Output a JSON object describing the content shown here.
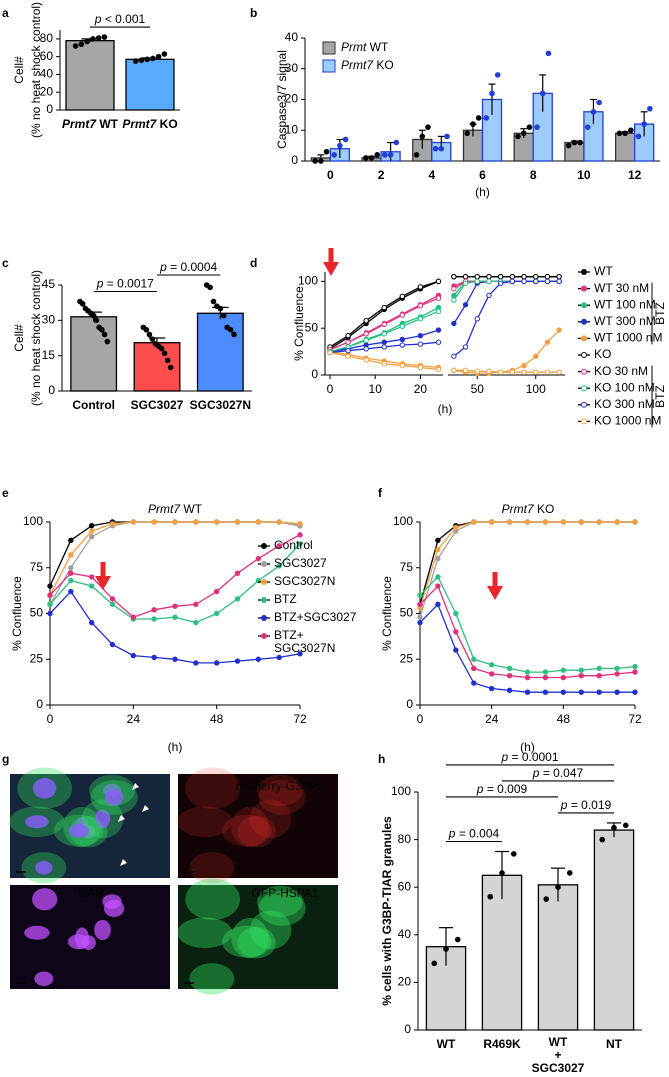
{
  "chart_data": [
    {
      "type": "bar",
      "panel": "a",
      "ylabel": [
        "Cell#",
        "(% no heat shock control)"
      ],
      "ylim": [
        0,
        90
      ],
      "yticks": [
        0,
        20,
        40,
        60,
        80
      ],
      "categories": [
        "Prmt7 WT",
        "Prmt7 KO"
      ],
      "italic_first_word": true,
      "series": [
        {
          "colors": [
            "#a6a6a6",
            "#59a9ff"
          ],
          "values": [
            78,
            57
          ],
          "errors": [
            2,
            1.5
          ],
          "points": [
            [
              72,
              74,
              77,
              80,
              81,
              82
            ],
            [
              55,
              56,
              57,
              58,
              60,
              63
            ]
          ]
        }
      ],
      "annotations": [
        {
          "text": "p < 0.001",
          "between": [
            "Prmt7 WT",
            "Prmt7 KO"
          ]
        }
      ]
    },
    {
      "type": "bar",
      "panel": "b",
      "ylabel": "Caspase3/7 signal",
      "xlabel": "(h)",
      "ylim": [
        0,
        40
      ],
      "yticks": [
        0,
        10,
        20,
        30,
        40
      ],
      "categories": [
        "0",
        "2",
        "4",
        "6",
        "8",
        "10",
        "12"
      ],
      "italic_first_word": true,
      "series": [
        {
          "name": "Prmt WT",
          "color": "#a6a6a6",
          "stroke": "#333333",
          "point_color": "#000000",
          "values": [
            1,
            1,
            7,
            10,
            9,
            6,
            9
          ],
          "errors": [
            1,
            0.5,
            3,
            2,
            1.5,
            0.5,
            0.5
          ],
          "points": [
            [
              0,
              0,
              3
            ],
            [
              1,
              1,
              2
            ],
            [
              2,
              8,
              11
            ],
            [
              9,
              12,
              14
            ],
            [
              8,
              9,
              11
            ],
            [
              5,
              6,
              6
            ],
            [
              9,
              9,
              10
            ]
          ]
        },
        {
          "name": "Prmt7 KO",
          "color": "#9ecbff",
          "stroke": "#1f3fd6",
          "point_color": "#1f3fd6",
          "values": [
            4,
            3,
            6,
            20,
            22,
            16,
            12
          ],
          "errors": [
            3,
            3,
            2,
            5,
            6,
            4,
            4
          ],
          "points": [
            [
              2,
              5,
              7
            ],
            [
              2,
              2,
              6
            ],
            [
              4,
              4,
              8
            ],
            [
              14,
              22,
              28
            ],
            [
              11,
              22,
              35
            ],
            [
              11,
              16,
              19
            ],
            [
              8,
              12,
              17
            ]
          ]
        }
      ]
    },
    {
      "type": "bar",
      "panel": "c",
      "ylabel": [
        "Cell#",
        "(% no heat shock control)"
      ],
      "ylim": [
        0,
        45
      ],
      "yticks": [
        0,
        15,
        30,
        45
      ],
      "categories": [
        "Control",
        "SGC3027",
        "SGC3027N"
      ],
      "series": [
        {
          "colors": [
            "#a6a6a6",
            "#ff4d4d",
            "#4d8cff"
          ],
          "values": [
            31.5,
            20.5,
            33
          ],
          "errors": [
            2,
            2,
            2.5
          ],
          "points": [
            [
              38,
              37,
              35,
              34,
              33,
              32,
              30,
              27,
              26,
              24,
              21
            ],
            [
              27,
              26,
              24,
              22,
              20,
              19,
              18,
              16,
              13,
              10
            ],
            [
              45,
              44,
              38,
              36,
              35,
              32,
              27,
              26,
              24
            ]
          ]
        }
      ],
      "annotations": [
        {
          "text": "p = 0.0017",
          "between": [
            "Control",
            "SGC3027"
          ]
        },
        {
          "text": "p = 0.0004",
          "between": [
            "SGC3027",
            "SGC3027N"
          ]
        }
      ]
    },
    {
      "type": "line",
      "panel": "d",
      "ylabel": "% Confluence",
      "xlabel": "(h)",
      "ylim": [
        0,
        110
      ],
      "yticks": [
        0,
        50,
        100
      ],
      "x_segments": [
        {
          "xlim": [
            0,
            25
          ],
          "xticks": [
            0,
            10,
            20
          ]
        },
        {
          "xlim": [
            25,
            125
          ],
          "xticks": [
            50,
            100
          ]
        }
      ],
      "x": [
        0,
        4,
        8,
        12,
        16,
        20,
        24,
        30,
        40,
        50,
        60,
        70,
        80,
        90,
        100,
        110,
        120
      ],
      "series": [
        {
          "name": "WT",
          "color": "#000000",
          "marker": "filled",
          "values": [
            28,
            40,
            55,
            70,
            82,
            92,
            100,
            105,
            105,
            105,
            105,
            105,
            105,
            105,
            105,
            105,
            105
          ]
        },
        {
          "name": "WT 30 nM",
          "color": "#e0307a",
          "marker": "filled",
          "values": [
            27,
            35,
            45,
            55,
            65,
            75,
            85,
            95,
            100,
            100,
            100,
            100,
            100,
            100,
            100,
            100,
            100
          ]
        },
        {
          "name": "WT 100 nM",
          "color": "#20c080",
          "marker": "filled",
          "values": [
            25,
            30,
            38,
            45,
            55,
            62,
            72,
            85,
            100,
            100,
            100,
            100,
            100,
            100,
            100,
            100,
            100
          ]
        },
        {
          "name": "WT 300 nM",
          "color": "#2030d0",
          "marker": "filled",
          "values": [
            25,
            28,
            32,
            35,
            38,
            42,
            48,
            55,
            75,
            98,
            100,
            100,
            100,
            100,
            100,
            100,
            100
          ]
        },
        {
          "name": "WT 1000 nM",
          "color": "#f5a040",
          "marker": "filled",
          "values": [
            25,
            22,
            18,
            15,
            12,
            10,
            8,
            5,
            3,
            2,
            2,
            3,
            5,
            10,
            20,
            35,
            48
          ]
        },
        {
          "name": "KO",
          "color": "#000000",
          "marker": "open",
          "values": [
            30,
            42,
            58,
            72,
            84,
            94,
            100,
            105,
            105,
            105,
            105,
            105,
            105,
            105,
            105,
            105,
            105
          ]
        },
        {
          "name": "KO 30 nM",
          "color": "#e0307a",
          "marker": "open",
          "values": [
            27,
            35,
            44,
            54,
            64,
            74,
            82,
            92,
            100,
            100,
            100,
            100,
            100,
            100,
            100,
            100,
            100
          ]
        },
        {
          "name": "KO 100 nM",
          "color": "#20c080",
          "marker": "open",
          "values": [
            25,
            30,
            37,
            44,
            52,
            60,
            68,
            80,
            98,
            100,
            100,
            100,
            100,
            100,
            100,
            100,
            100
          ]
        },
        {
          "name": "KO 300 nM",
          "color": "#2030d0",
          "marker": "open",
          "values": [
            24,
            26,
            28,
            30,
            32,
            33,
            35,
            20,
            30,
            60,
            85,
            98,
            100,
            100,
            100,
            100,
            100
          ]
        },
        {
          "name": "KO 1000 nM",
          "color": "#f5a040",
          "marker": "open",
          "values": [
            24,
            20,
            16,
            12,
            10,
            8,
            6,
            5,
            5,
            4,
            4,
            3,
            3,
            3,
            3,
            3,
            3
          ]
        }
      ],
      "legend_groups": [
        {
          "label": "BTZ",
          "from": "WT 30 nM",
          "to": "WT 1000 nM"
        },
        {
          "label": "BTZ",
          "from": "KO 30 nM",
          "to": "KO 1000 nM"
        }
      ]
    },
    {
      "type": "line",
      "panel": "e",
      "title": "Prmt7 WT",
      "italic_first_word": true,
      "ylabel": "% Confluence",
      "xlabel": "(h)",
      "xlim": [
        0,
        72
      ],
      "xticks": [
        0,
        24,
        48,
        72
      ],
      "ylim": [
        0,
        100
      ],
      "yticks": [
        0,
        25,
        50,
        75,
        100
      ],
      "x": [
        0,
        6,
        12,
        18,
        24,
        30,
        36,
        42,
        48,
        54,
        60,
        66,
        72
      ],
      "series": [
        {
          "name": "Control",
          "color": "#000000",
          "marker": "filled",
          "values": [
            65,
            90,
            98,
            100,
            100,
            100,
            100,
            100,
            100,
            100,
            100,
            100,
            98
          ]
        },
        {
          "name": "SGC3027",
          "color": "#a0a0a0",
          "marker": "filled",
          "values": [
            55,
            75,
            92,
            98,
            100,
            100,
            100,
            100,
            100,
            100,
            100,
            100,
            98
          ]
        },
        {
          "name": "SGC3027N",
          "color": "#f5a040",
          "marker": "filled",
          "values": [
            60,
            82,
            95,
            99,
            100,
            100,
            100,
            100,
            100,
            100,
            100,
            100,
            99
          ]
        },
        {
          "name": "BTZ",
          "color": "#2fbf80",
          "marker": "filled",
          "values": [
            55,
            68,
            65,
            55,
            47,
            47,
            48,
            45,
            50,
            58,
            68,
            76,
            88
          ]
        },
        {
          "name": "BTZ+SGC3027",
          "color": "#2030d0",
          "marker": "filled",
          "values": [
            50,
            62,
            45,
            33,
            27,
            26,
            25,
            23,
            23,
            24,
            25,
            26,
            28
          ]
        },
        {
          "name": "BTZ+\nSGC3027N",
          "color": "#e0307a",
          "marker": "filled",
          "values": [
            60,
            72,
            70,
            58,
            48,
            52,
            54,
            55,
            62,
            72,
            80,
            87,
            93
          ]
        }
      ]
    },
    {
      "type": "line",
      "panel": "f",
      "title": "Prmt7 KO",
      "italic_first_word": true,
      "ylabel": "% Confluence",
      "xlabel": "(h)",
      "xlim": [
        0,
        72
      ],
      "xticks": [
        0,
        24,
        48,
        72
      ],
      "ylim": [
        0,
        100
      ],
      "yticks": [
        0,
        25,
        50,
        75,
        100
      ],
      "x": [
        0,
        6,
        12,
        18,
        24,
        30,
        36,
        42,
        48,
        54,
        60,
        66,
        72
      ],
      "series": [
        {
          "color": "#000000",
          "marker": "filled",
          "values": [
            55,
            90,
            98,
            100,
            100,
            100,
            100,
            100,
            100,
            100,
            100,
            100,
            100
          ]
        },
        {
          "color": "#a0a0a0",
          "marker": "filled",
          "values": [
            48,
            80,
            95,
            100,
            100,
            100,
            100,
            100,
            100,
            100,
            100,
            100,
            100
          ]
        },
        {
          "color": "#f5a040",
          "marker": "filled",
          "values": [
            53,
            85,
            97,
            100,
            100,
            100,
            100,
            100,
            100,
            100,
            100,
            100,
            100
          ]
        },
        {
          "color": "#2fbf80",
          "marker": "filled",
          "values": [
            60,
            70,
            50,
            25,
            22,
            20,
            18,
            18,
            19,
            19,
            20,
            20,
            21
          ]
        },
        {
          "color": "#2030d0",
          "marker": "filled",
          "values": [
            45,
            55,
            30,
            12,
            9,
            8,
            7,
            7,
            7,
            7,
            7,
            7,
            7
          ]
        },
        {
          "color": "#e0307a",
          "marker": "filled",
          "values": [
            55,
            65,
            40,
            20,
            17,
            16,
            15,
            15,
            15,
            16,
            16,
            17,
            18
          ]
        }
      ]
    },
    {
      "type": "image_grid",
      "panel": "g",
      "panels": [
        {
          "label": "mCherry-G3BP1",
          "color": "#ff3030"
        },
        {
          "label": "TIAR",
          "color": "#c050ff"
        },
        {
          "label": "GFP-HSPA1",
          "color": "#30e060"
        }
      ]
    },
    {
      "type": "bar",
      "panel": "h",
      "ylabel": "% cells with G3BP-TIAR granules",
      "ylim": [
        0,
        100
      ],
      "yticks": [
        0,
        20,
        40,
        60,
        80,
        100
      ],
      "categories": [
        "WT",
        "R469K",
        "WT\n+\nSGC3027",
        "NT"
      ],
      "series": [
        {
          "color": "#d4d4d4",
          "values": [
            35,
            65,
            61,
            84
          ],
          "errors": [
            8,
            10,
            7,
            3
          ],
          "points": [
            [
              28,
              34,
              38
            ],
            [
              56,
              66,
              74
            ],
            [
              55,
              60,
              66
            ],
            [
              80,
              85,
              86
            ]
          ]
        }
      ],
      "annotations": [
        {
          "text": "p = 0.004",
          "between": [
            "WT",
            "R469K"
          ]
        },
        {
          "text": "p = 0.019",
          "between": [
            "WT\n+\nSGC3027",
            "NT"
          ]
        },
        {
          "text": "p = 0.009",
          "between": [
            "WT",
            "WT\n+\nSGC3027"
          ]
        },
        {
          "text": "p = 0.047",
          "between": [
            "R469K",
            "NT"
          ]
        },
        {
          "text": "p = 0.0001",
          "between": [
            "WT",
            "NT"
          ]
        }
      ]
    }
  ]
}
